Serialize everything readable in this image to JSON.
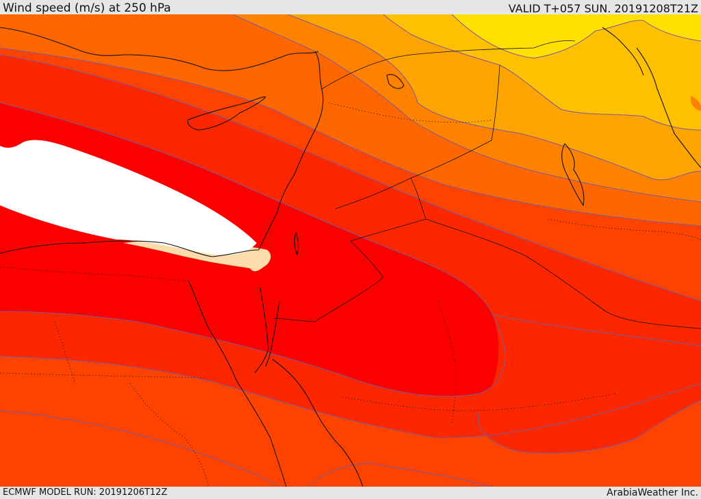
{
  "header": {
    "title": "Wind speed (m/s) at 250 hPa",
    "valid_time": "VALID T+057 SUN. 20191208T21Z"
  },
  "footer": {
    "model_run": "ECMWF MODEL RUN: 20191206T12Z",
    "credit": "ArabiaWeather Inc."
  },
  "map": {
    "field": "Wind speed at 250 hPa",
    "region": "Eastern Mediterranean / Levant / Northern Arabia",
    "colors": {
      "white_core": "#ffffff",
      "cream": "#fbdcaa",
      "red": "#fc0000",
      "red_orange": "#fc2600",
      "orange_red": "#fe4200",
      "orange": "#fe6700",
      "orange_light": "#fe8200",
      "amber": "#fea400",
      "yellow_orange": "#ffc000",
      "yellow": "#ffe000",
      "contour_line": "#7a5a9a",
      "coast_line": "#111111"
    }
  }
}
